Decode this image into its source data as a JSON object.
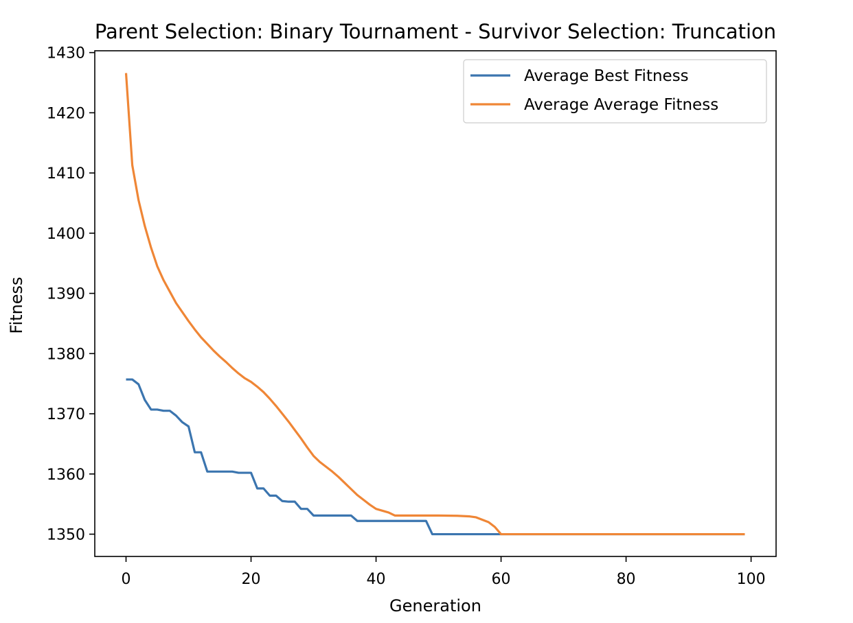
{
  "chart_data": {
    "type": "line",
    "title": "Parent Selection: Binary Tournament - Survivor Selection: Truncation",
    "xlabel": "Generation",
    "ylabel": "Fitness",
    "xlim": [
      -5,
      104
    ],
    "ylim": [
      1346.3,
      1430.3
    ],
    "xticks": [
      0,
      20,
      40,
      60,
      80,
      100
    ],
    "yticks": [
      1350,
      1360,
      1370,
      1380,
      1390,
      1400,
      1410,
      1420,
      1430
    ],
    "grid": false,
    "legend_position": "top-right",
    "series": [
      {
        "name": "Average Best Fitness",
        "color": "#3b75af",
        "points": [
          [
            0,
            1375.7
          ],
          [
            1,
            1375.7
          ],
          [
            2,
            1374.9
          ],
          [
            3,
            1372.3
          ],
          [
            4,
            1370.7
          ],
          [
            5,
            1370.7
          ],
          [
            6,
            1370.5
          ],
          [
            7,
            1370.5
          ],
          [
            8,
            1369.7
          ],
          [
            9,
            1368.6
          ],
          [
            10,
            1367.9
          ],
          [
            11,
            1363.6
          ],
          [
            12,
            1363.6
          ],
          [
            13,
            1360.4
          ],
          [
            14,
            1360.4
          ],
          [
            15,
            1360.4
          ],
          [
            16,
            1360.4
          ],
          [
            17,
            1360.4
          ],
          [
            18,
            1360.2
          ],
          [
            19,
            1360.2
          ],
          [
            20,
            1360.2
          ],
          [
            21,
            1357.6
          ],
          [
            22,
            1357.6
          ],
          [
            23,
            1356.4
          ],
          [
            24,
            1356.4
          ],
          [
            25,
            1355.5
          ],
          [
            26,
            1355.4
          ],
          [
            27,
            1355.4
          ],
          [
            28,
            1354.2
          ],
          [
            29,
            1354.2
          ],
          [
            30,
            1353.1
          ],
          [
            31,
            1353.1
          ],
          [
            32,
            1353.1
          ],
          [
            33,
            1353.1
          ],
          [
            34,
            1353.1
          ],
          [
            35,
            1353.1
          ],
          [
            36,
            1353.1
          ],
          [
            37,
            1352.2
          ],
          [
            38,
            1352.2
          ],
          [
            39,
            1352.2
          ],
          [
            40,
            1352.2
          ],
          [
            41,
            1352.2
          ],
          [
            42,
            1352.2
          ],
          [
            43,
            1352.2
          ],
          [
            44,
            1352.2
          ],
          [
            45,
            1352.2
          ],
          [
            46,
            1352.2
          ],
          [
            47,
            1352.2
          ],
          [
            48,
            1352.2
          ],
          [
            49,
            1350
          ],
          [
            60,
            1350
          ],
          [
            99,
            1350
          ]
        ]
      },
      {
        "name": "Average Average Fitness",
        "color": "#ef8636",
        "points": [
          [
            0,
            1426.6
          ],
          [
            1,
            1411.3
          ],
          [
            2,
            1405.5
          ],
          [
            3,
            1401.2
          ],
          [
            4,
            1397.6
          ],
          [
            5,
            1394.5
          ],
          [
            6,
            1392.2
          ],
          [
            7,
            1390.3
          ],
          [
            8,
            1388.4
          ],
          [
            9,
            1386.9
          ],
          [
            10,
            1385.4
          ],
          [
            11,
            1384.0
          ],
          [
            12,
            1382.7
          ],
          [
            13,
            1381.6
          ],
          [
            14,
            1380.5
          ],
          [
            15,
            1379.5
          ],
          [
            16,
            1378.6
          ],
          [
            17,
            1377.6
          ],
          [
            18,
            1376.7
          ],
          [
            19,
            1375.9
          ],
          [
            20,
            1375.3
          ],
          [
            21,
            1374.5
          ],
          [
            22,
            1373.6
          ],
          [
            23,
            1372.5
          ],
          [
            24,
            1371.3
          ],
          [
            25,
            1370.0
          ],
          [
            26,
            1368.7
          ],
          [
            27,
            1367.3
          ],
          [
            28,
            1365.9
          ],
          [
            29,
            1364.4
          ],
          [
            30,
            1363.0
          ],
          [
            31,
            1362.0
          ],
          [
            32,
            1361.2
          ],
          [
            33,
            1360.4
          ],
          [
            34,
            1359.5
          ],
          [
            35,
            1358.5
          ],
          [
            36,
            1357.5
          ],
          [
            37,
            1356.5
          ],
          [
            38,
            1355.7
          ],
          [
            39,
            1354.9
          ],
          [
            40,
            1354.2
          ],
          [
            41,
            1353.9
          ],
          [
            42,
            1353.6
          ],
          [
            43,
            1353.1
          ],
          [
            50,
            1353.1
          ],
          [
            53,
            1353.05
          ],
          [
            55,
            1352.95
          ],
          [
            56,
            1352.8
          ],
          [
            57,
            1352.4
          ],
          [
            58,
            1352.0
          ],
          [
            59,
            1351.2
          ],
          [
            60,
            1350
          ],
          [
            99,
            1350
          ]
        ]
      }
    ]
  }
}
